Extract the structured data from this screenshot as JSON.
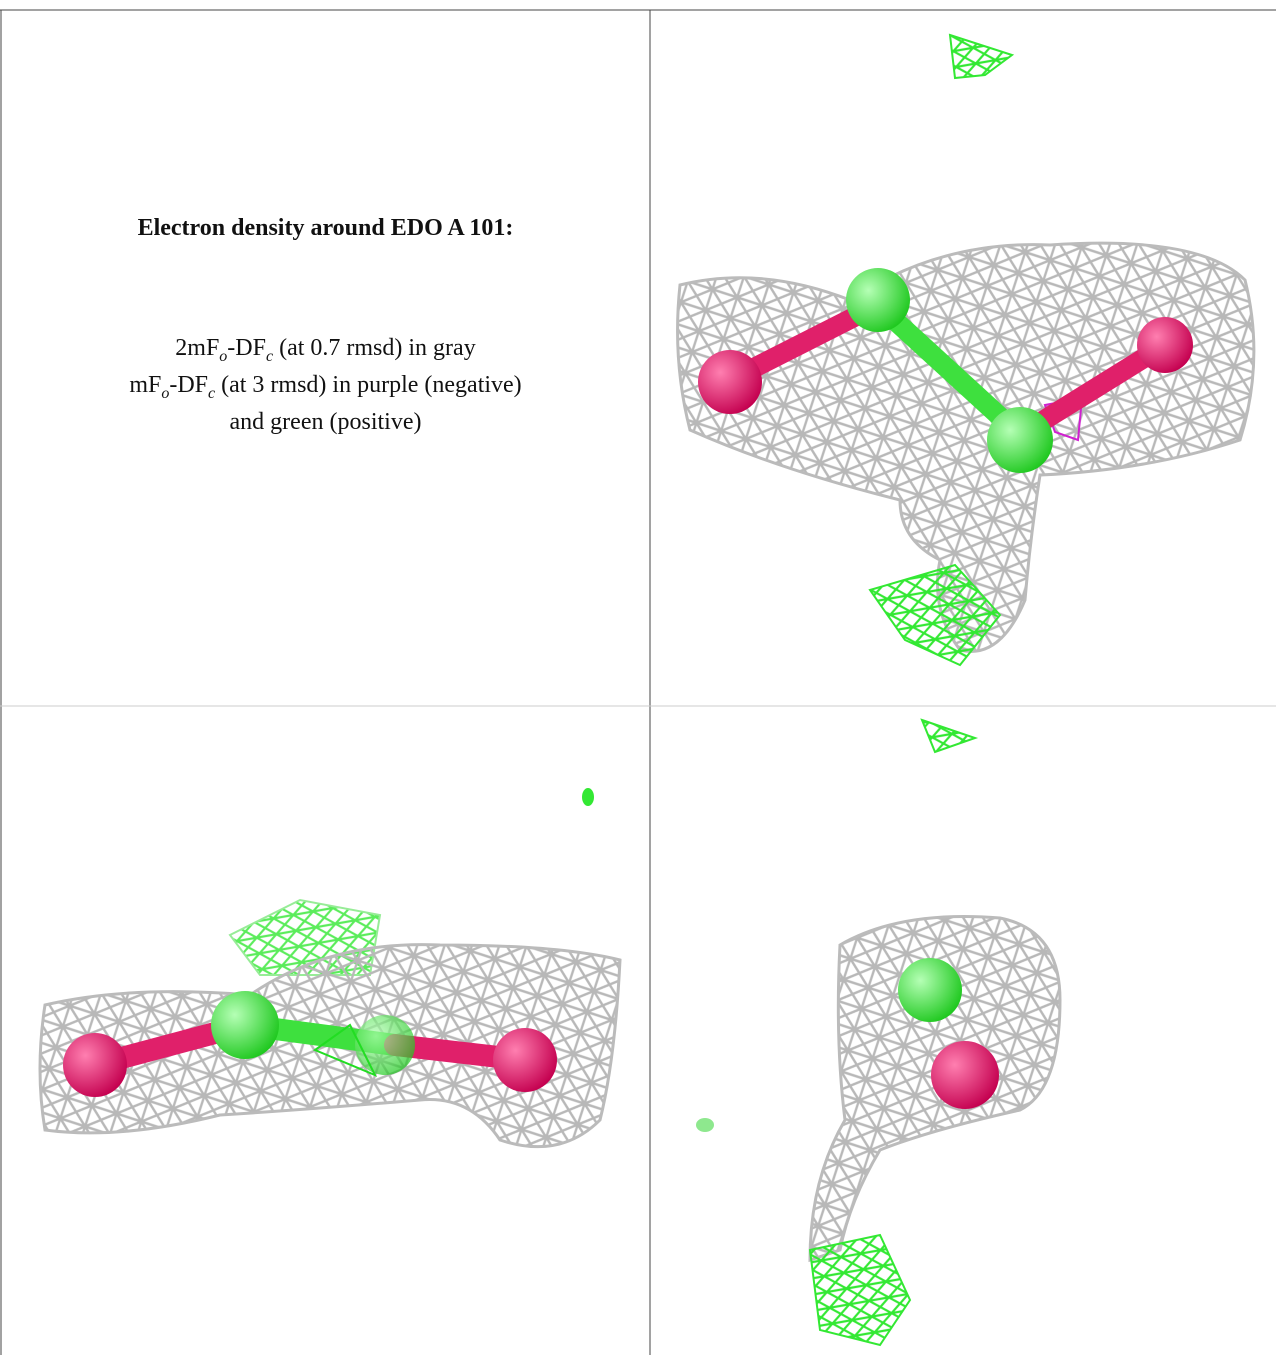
{
  "caption": {
    "title": "Electron density around EDO A 101:",
    "lines": [
      [
        "2mF",
        "o",
        "-DF",
        "c",
        " (at 0.7 rmsd) in gray"
      ],
      [
        "mF",
        "o",
        "-DF",
        "c",
        " (at 3 rmsd) in purple (negative)"
      ],
      [
        "and green (positive)"
      ]
    ]
  }
}
